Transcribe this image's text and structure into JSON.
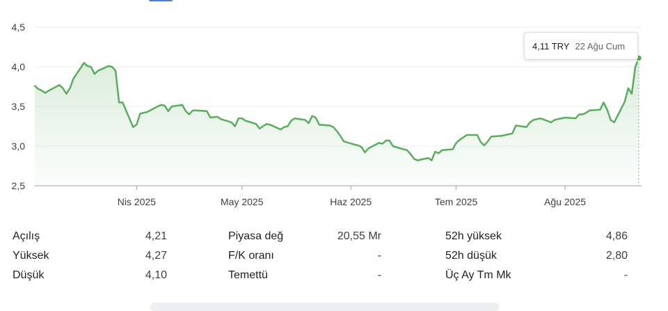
{
  "chart_data": {
    "type": "area",
    "currency": "TRY",
    "y_ticks": [
      {
        "value": 4.5,
        "label": "4,5"
      },
      {
        "value": 4.0,
        "label": "4,0"
      },
      {
        "value": 3.5,
        "label": "3,5"
      },
      {
        "value": 3.0,
        "label": "3,0"
      },
      {
        "value": 2.5,
        "label": "2,5"
      }
    ],
    "ylim": [
      2.5,
      4.5
    ],
    "xlim": [
      "2025-03-03",
      "2025-08-22"
    ],
    "x_ticks": [
      {
        "date": "2025-04-01",
        "label": "Nis 2025"
      },
      {
        "date": "2025-05-01",
        "label": "May 2025"
      },
      {
        "date": "2025-06-01",
        "label": "Haz 2025"
      },
      {
        "date": "2025-07-01",
        "label": "Tem 2025"
      },
      {
        "date": "2025-08-01",
        "label": "Ağu 2025"
      }
    ],
    "grid": true,
    "line_color": "#5aac5e",
    "fill_color": "#e6f4e8",
    "points": [
      [
        "2025-03-03",
        3.76
      ],
      [
        "2025-03-04",
        3.72
      ],
      [
        "2025-03-05",
        3.7
      ],
      [
        "2025-03-06",
        3.67
      ],
      [
        "2025-03-07",
        3.7
      ],
      [
        "2025-03-10",
        3.77
      ],
      [
        "2025-03-11",
        3.73
      ],
      [
        "2025-03-12",
        3.66
      ],
      [
        "2025-03-13",
        3.73
      ],
      [
        "2025-03-14",
        3.85
      ],
      [
        "2025-03-17",
        4.05
      ],
      [
        "2025-03-18",
        4.01
      ],
      [
        "2025-03-19",
        4.0
      ],
      [
        "2025-03-20",
        3.91
      ],
      [
        "2025-03-21",
        3.95
      ],
      [
        "2025-03-24",
        4.01
      ],
      [
        "2025-03-25",
        4.0
      ],
      [
        "2025-03-26",
        3.95
      ],
      [
        "2025-03-27",
        3.55
      ],
      [
        "2025-03-28",
        3.55
      ],
      [
        "2025-03-31",
        3.24
      ],
      [
        "2025-04-01",
        3.27
      ],
      [
        "2025-04-02",
        3.41
      ],
      [
        "2025-04-03",
        3.42
      ],
      [
        "2025-04-04",
        3.43
      ],
      [
        "2025-04-07",
        3.5
      ],
      [
        "2025-04-08",
        3.52
      ],
      [
        "2025-04-09",
        3.51
      ],
      [
        "2025-04-10",
        3.44
      ],
      [
        "2025-04-11",
        3.5
      ],
      [
        "2025-04-14",
        3.52
      ],
      [
        "2025-04-15",
        3.44
      ],
      [
        "2025-04-16",
        3.4
      ],
      [
        "2025-04-17",
        3.45
      ],
      [
        "2025-04-18",
        3.45
      ],
      [
        "2025-04-21",
        3.44
      ],
      [
        "2025-04-22",
        3.36
      ],
      [
        "2025-04-24",
        3.37
      ],
      [
        "2025-04-25",
        3.34
      ],
      [
        "2025-04-28",
        3.3
      ],
      [
        "2025-04-29",
        3.25
      ],
      [
        "2025-04-30",
        3.35
      ],
      [
        "2025-05-01",
        3.35
      ],
      [
        "2025-05-02",
        3.32
      ],
      [
        "2025-05-05",
        3.28
      ],
      [
        "2025-05-06",
        3.22
      ],
      [
        "2025-05-07",
        3.25
      ],
      [
        "2025-05-08",
        3.28
      ],
      [
        "2025-05-09",
        3.27
      ],
      [
        "2025-05-12",
        3.21
      ],
      [
        "2025-05-13",
        3.24
      ],
      [
        "2025-05-14",
        3.25
      ],
      [
        "2025-05-15",
        3.32
      ],
      [
        "2025-05-16",
        3.35
      ],
      [
        "2025-05-19",
        3.33
      ],
      [
        "2025-05-20",
        3.29
      ],
      [
        "2025-05-21",
        3.38
      ],
      [
        "2025-05-22",
        3.36
      ],
      [
        "2025-05-23",
        3.27
      ],
      [
        "2025-05-26",
        3.26
      ],
      [
        "2025-05-27",
        3.24
      ],
      [
        "2025-05-28",
        3.19
      ],
      [
        "2025-05-29",
        3.13
      ],
      [
        "2025-05-30",
        3.06
      ],
      [
        "2025-06-02",
        3.02
      ],
      [
        "2025-06-03",
        3.01
      ],
      [
        "2025-06-04",
        2.99
      ],
      [
        "2025-06-05",
        2.92
      ],
      [
        "2025-06-06",
        2.97
      ],
      [
        "2025-06-09",
        3.04
      ],
      [
        "2025-06-10",
        3.03
      ],
      [
        "2025-06-11",
        3.07
      ],
      [
        "2025-06-12",
        3.07
      ],
      [
        "2025-06-13",
        3.0
      ],
      [
        "2025-06-16",
        2.96
      ],
      [
        "2025-06-17",
        2.95
      ],
      [
        "2025-06-18",
        2.9
      ],
      [
        "2025-06-19",
        2.84
      ],
      [
        "2025-06-20",
        2.82
      ],
      [
        "2025-06-23",
        2.85
      ],
      [
        "2025-06-24",
        2.82
      ],
      [
        "2025-06-25",
        2.93
      ],
      [
        "2025-06-26",
        2.91
      ],
      [
        "2025-06-27",
        2.95
      ],
      [
        "2025-06-30",
        2.96
      ],
      [
        "2025-07-01",
        3.04
      ],
      [
        "2025-07-02",
        3.08
      ],
      [
        "2025-07-03",
        3.11
      ],
      [
        "2025-07-04",
        3.14
      ],
      [
        "2025-07-07",
        3.14
      ],
      [
        "2025-07-08",
        3.05
      ],
      [
        "2025-07-09",
        3.01
      ],
      [
        "2025-07-10",
        3.06
      ],
      [
        "2025-07-11",
        3.12
      ],
      [
        "2025-07-14",
        3.13
      ],
      [
        "2025-07-15",
        3.14
      ],
      [
        "2025-07-16",
        3.15
      ],
      [
        "2025-07-17",
        3.16
      ],
      [
        "2025-07-18",
        3.26
      ],
      [
        "2025-07-21",
        3.24
      ],
      [
        "2025-07-22",
        3.3
      ],
      [
        "2025-07-23",
        3.33
      ],
      [
        "2025-07-24",
        3.34
      ],
      [
        "2025-07-25",
        3.35
      ],
      [
        "2025-07-28",
        3.3
      ],
      [
        "2025-07-29",
        3.33
      ],
      [
        "2025-07-30",
        3.34
      ],
      [
        "2025-07-31",
        3.35
      ],
      [
        "2025-08-01",
        3.36
      ],
      [
        "2025-08-04",
        3.35
      ],
      [
        "2025-08-05",
        3.4
      ],
      [
        "2025-08-06",
        3.4
      ],
      [
        "2025-08-07",
        3.42
      ],
      [
        "2025-08-08",
        3.45
      ],
      [
        "2025-08-11",
        3.46
      ],
      [
        "2025-08-12",
        3.55
      ],
      [
        "2025-08-13",
        3.46
      ],
      [
        "2025-08-14",
        3.33
      ],
      [
        "2025-08-15",
        3.3
      ],
      [
        "2025-08-18",
        3.56
      ],
      [
        "2025-08-19",
        3.73
      ],
      [
        "2025-08-20",
        3.66
      ],
      [
        "2025-08-21",
        4.0
      ],
      [
        "2025-08-22",
        4.11
      ]
    ]
  },
  "tooltip": {
    "price": "4,11 TRY",
    "date": "22 Ağu Cum"
  },
  "stats": [
    [
      {
        "label": "Açılış",
        "value": "4,21"
      },
      {
        "label": "Piyasa değ",
        "value": "20,55 Mr"
      },
      {
        "label": "52h yüksek",
        "value": "4,86"
      }
    ],
    [
      {
        "label": "Yüksek",
        "value": "4,27"
      },
      {
        "label": "F/K oranı",
        "value": "-"
      },
      {
        "label": "52h düşük",
        "value": "2,80"
      }
    ],
    [
      {
        "label": "Düşük",
        "value": "4,10"
      },
      {
        "label": "Temettü",
        "value": "-"
      },
      {
        "label": "Üç Ay Tm Mk",
        "value": "-"
      }
    ]
  ]
}
